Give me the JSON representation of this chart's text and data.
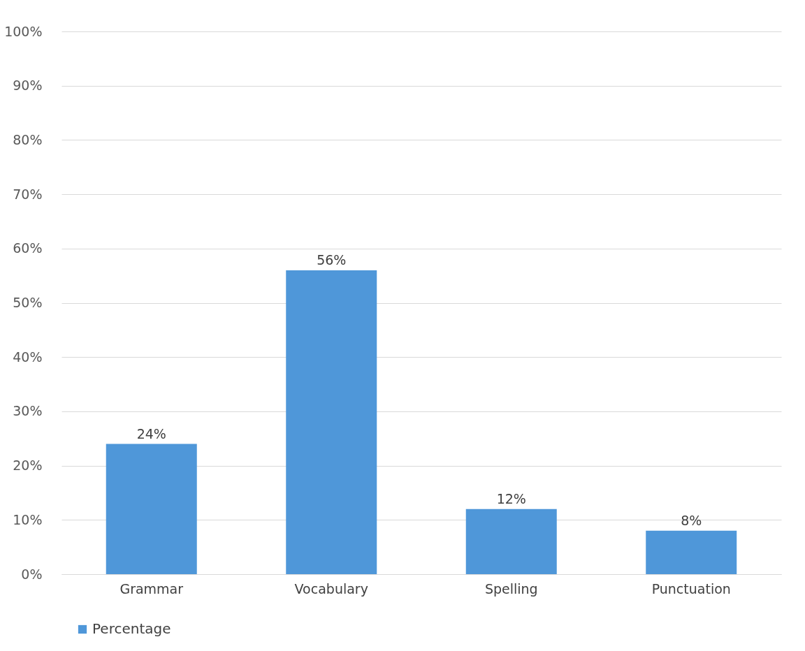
{
  "chart_data": {
    "type": "bar",
    "categories": [
      "Grammar",
      "Vocabulary",
      "Spelling",
      "Punctuation"
    ],
    "series": [
      {
        "name": "Percentage",
        "color": "#4f97d9",
        "values": [
          24,
          56,
          12,
          8
        ],
        "value_labels": [
          "24%",
          "56%",
          "12%",
          "8%"
        ]
      }
    ],
    "ylim": [
      0,
      100
    ],
    "yticks": [
      {
        "value": 0,
        "label": "0%"
      },
      {
        "value": 10,
        "label": "10%"
      },
      {
        "value": 20,
        "label": "20%"
      },
      {
        "value": 30,
        "label": "30%"
      },
      {
        "value": 40,
        "label": "40%"
      },
      {
        "value": 50,
        "label": "50%"
      },
      {
        "value": 60,
        "label": "60%"
      },
      {
        "value": 70,
        "label": "70%"
      },
      {
        "value": 80,
        "label": "80%"
      },
      {
        "value": 90,
        "label": "90%"
      },
      {
        "value": 100,
        "label": "100%"
      }
    ],
    "grid": "y",
    "legend": "bottom"
  }
}
